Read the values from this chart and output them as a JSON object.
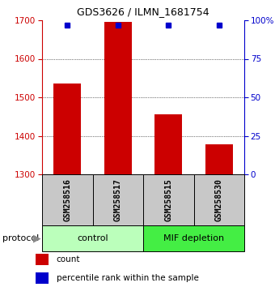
{
  "title": "GDS3626 / ILMN_1681754",
  "samples": [
    "GSM258516",
    "GSM258517",
    "GSM258515",
    "GSM258530"
  ],
  "bar_values": [
    1535,
    1695,
    1455,
    1378
  ],
  "percentile_values": [
    97,
    97,
    97,
    97
  ],
  "ylim_left": [
    1300,
    1700
  ],
  "ylim_right": [
    0,
    100
  ],
  "yticks_left": [
    1300,
    1400,
    1500,
    1600,
    1700
  ],
  "yticks_right": [
    0,
    25,
    50,
    75,
    100
  ],
  "bar_color": "#cc0000",
  "percentile_color": "#0000cc",
  "bar_bottom": 1300,
  "bar_width": 0.55,
  "groups": [
    {
      "label": "control",
      "indices": [
        0,
        1
      ],
      "color": "#bbffbb"
    },
    {
      "label": "MIF depletion",
      "indices": [
        2,
        3
      ],
      "color": "#44ee44"
    }
  ],
  "protocol_label": "protocol",
  "legend_items": [
    {
      "label": "count",
      "color": "#cc0000"
    },
    {
      "label": "percentile rank within the sample",
      "color": "#0000cc"
    }
  ],
  "background_color": "#ffffff",
  "sample_box_color": "#c8c8c8"
}
